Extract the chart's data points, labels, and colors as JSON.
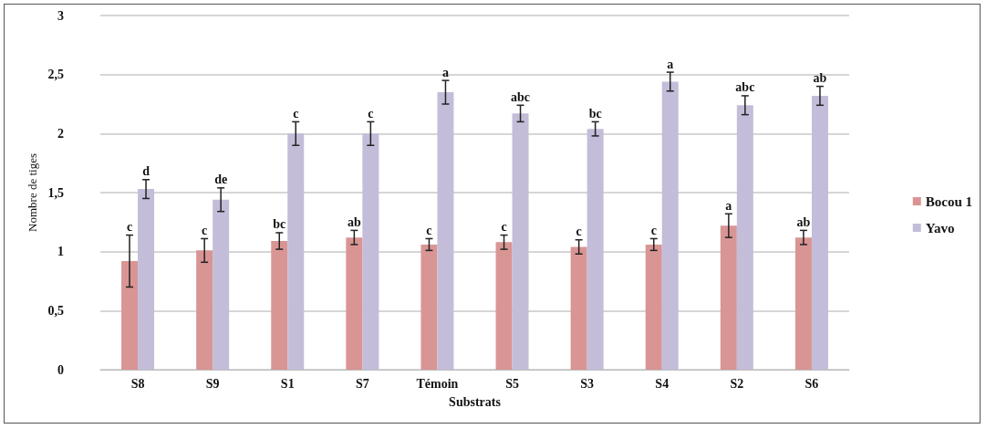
{
  "chart_data": {
    "type": "bar",
    "xlabel": "Substrats",
    "ylabel": "Nombre de tiges",
    "categories": [
      "S8",
      "S9",
      "S1",
      "S7",
      "Témoin",
      "S5",
      "S3",
      "S4",
      "S2",
      "S6"
    ],
    "series": [
      {
        "name": "Bocou 1",
        "color": "#d99594",
        "values": [
          0.92,
          1.01,
          1.09,
          1.12,
          1.06,
          1.08,
          1.04,
          1.06,
          1.22,
          1.12
        ],
        "errors": [
          0.22,
          0.1,
          0.07,
          0.06,
          0.05,
          0.06,
          0.06,
          0.05,
          0.1,
          0.06
        ],
        "value_labels": [
          "c",
          "c",
          "bc",
          "ab",
          "c",
          "c",
          "c",
          "c",
          "a",
          "ab"
        ]
      },
      {
        "name": "Yavo",
        "color": "#c4bdd9",
        "values": [
          1.53,
          1.44,
          2.0,
          2.0,
          2.35,
          2.17,
          2.04,
          2.44,
          2.24,
          2.32
        ],
        "errors": [
          0.08,
          0.1,
          0.1,
          0.1,
          0.1,
          0.07,
          0.06,
          0.08,
          0.08,
          0.08
        ],
        "value_labels": [
          "d",
          "de",
          "c",
          "c",
          "a",
          "abc",
          "bc",
          "a",
          "abc",
          "ab"
        ]
      }
    ],
    "ylim": [
      0,
      3
    ],
    "yticks": [
      0,
      {
        "value": 0.5,
        "label": "0,5"
      },
      1,
      {
        "value": 1.5,
        "label": "1,5"
      },
      2,
      {
        "value": 2.5,
        "label": "2,5"
      },
      3
    ],
    "grid": "y",
    "legend": "right"
  }
}
